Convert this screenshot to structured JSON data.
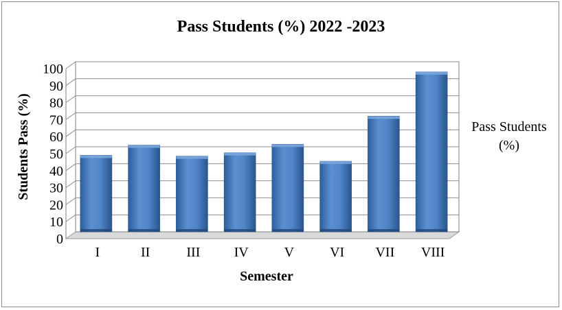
{
  "chart_data": {
    "type": "bar",
    "title": "Pass Students (%) 2022 -2023",
    "xlabel": "Semester",
    "ylabel": "Students Pass (%)",
    "categories": [
      "I",
      "II",
      "III",
      "IV",
      "V",
      "VI",
      "VII",
      "VIII"
    ],
    "series": [
      {
        "name": "Pass Students (%)",
        "values": [
          45,
          51,
          44.5,
          46.5,
          51.5,
          41.5,
          68,
          94
        ]
      }
    ],
    "ylim": [
      0,
      100
    ],
    "yticks": [
      "0",
      "10",
      "20",
      "30",
      "40",
      "50",
      "60",
      "70",
      "80",
      "90",
      "100"
    ],
    "grid": true,
    "legend_position": "right",
    "legend_lines": [
      "Pass Students",
      "(%)"
    ],
    "bar_color": "#4a7ebf",
    "bar_color_dark": "#2a5a96"
  }
}
